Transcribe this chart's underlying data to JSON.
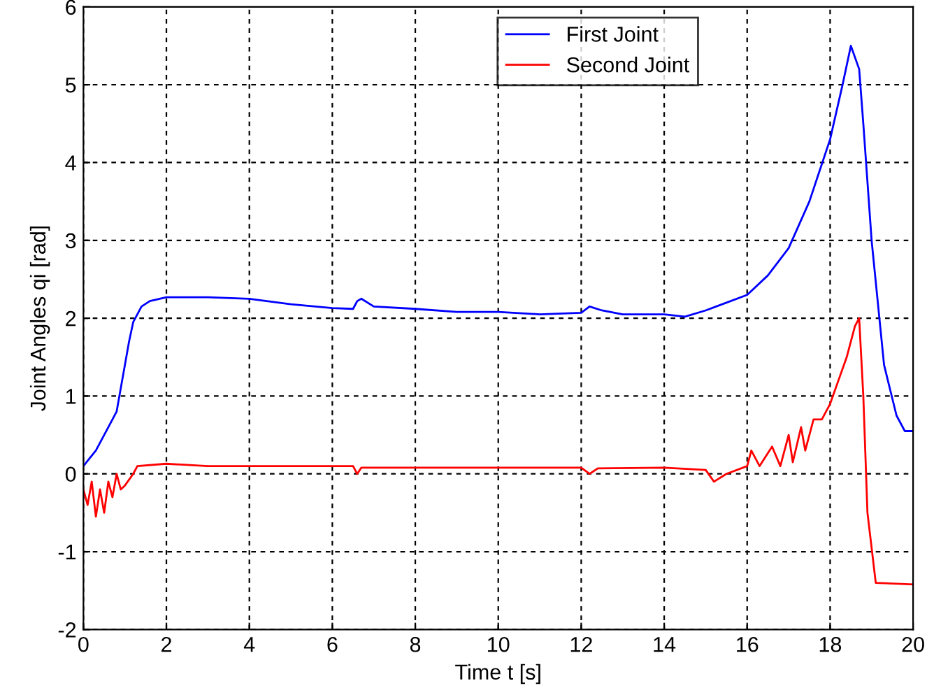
{
  "chart_data": {
    "type": "line",
    "xlabel": "Time t [s]",
    "ylabel": "Joint Angles qi [rad]",
    "xlim": [
      0,
      20
    ],
    "ylim": [
      -2,
      6
    ],
    "xticks": [
      0,
      2,
      4,
      6,
      8,
      10,
      12,
      14,
      16,
      18,
      20
    ],
    "yticks": [
      -2,
      -1,
      0,
      1,
      2,
      3,
      4,
      5,
      6
    ],
    "grid": true,
    "legend": "top",
    "line_style": "solid",
    "marker": "none",
    "series": [
      {
        "name": "First Joint",
        "color": "#0000ff",
        "x": [
          0,
          0.15,
          0.3,
          0.5,
          0.7,
          0.8,
          0.9,
          1.0,
          1.1,
          1.2,
          1.4,
          1.6,
          2,
          3,
          4,
          5,
          6,
          6.5,
          6.6,
          6.7,
          7,
          8,
          9,
          10,
          11,
          12,
          12.2,
          12.5,
          13,
          14,
          14.5,
          15,
          15.5,
          16,
          16.5,
          17,
          17.5,
          18,
          18.3,
          18.5,
          18.7,
          18.8,
          19,
          19.3,
          19.6,
          19.8,
          20
        ],
        "values": [
          0.1,
          0.2,
          0.3,
          0.5,
          0.7,
          0.8,
          1.1,
          1.4,
          1.7,
          1.95,
          2.15,
          2.22,
          2.27,
          2.27,
          2.25,
          2.18,
          2.13,
          2.12,
          2.22,
          2.25,
          2.15,
          2.12,
          2.08,
          2.08,
          2.05,
          2.07,
          2.15,
          2.1,
          2.05,
          2.05,
          2.02,
          2.1,
          2.2,
          2.3,
          2.55,
          2.9,
          3.5,
          4.3,
          5.0,
          5.5,
          5.2,
          4.5,
          3.0,
          1.4,
          0.75,
          0.55,
          0.55
        ]
      },
      {
        "name": "Second Joint",
        "color": "#ff0000",
        "x": [
          0,
          0.1,
          0.2,
          0.3,
          0.4,
          0.5,
          0.6,
          0.7,
          0.8,
          0.9,
          1.0,
          1.2,
          1.3,
          2,
          3,
          6,
          6.5,
          6.6,
          6.7,
          12,
          12.2,
          12.4,
          14,
          15,
          15.2,
          15.5,
          16,
          16.1,
          16.3,
          16.6,
          16.8,
          17,
          17.1,
          17.3,
          17.4,
          17.6,
          17.8,
          18,
          18.2,
          18.4,
          18.6,
          18.7,
          18.8,
          18.9,
          19.1,
          20
        ],
        "values": [
          -0.2,
          -0.4,
          -0.1,
          -0.55,
          -0.2,
          -0.5,
          -0.1,
          -0.3,
          0.0,
          -0.2,
          -0.15,
          0.0,
          0.1,
          0.13,
          0.1,
          0.1,
          0.1,
          0.0,
          0.08,
          0.08,
          0.0,
          0.07,
          0.08,
          0.05,
          -0.1,
          0.0,
          0.1,
          0.3,
          0.1,
          0.35,
          0.1,
          0.5,
          0.15,
          0.6,
          0.3,
          0.7,
          0.7,
          0.9,
          1.2,
          1.5,
          1.9,
          2.0,
          1.0,
          -0.5,
          -1.4,
          -1.42
        ]
      }
    ]
  }
}
